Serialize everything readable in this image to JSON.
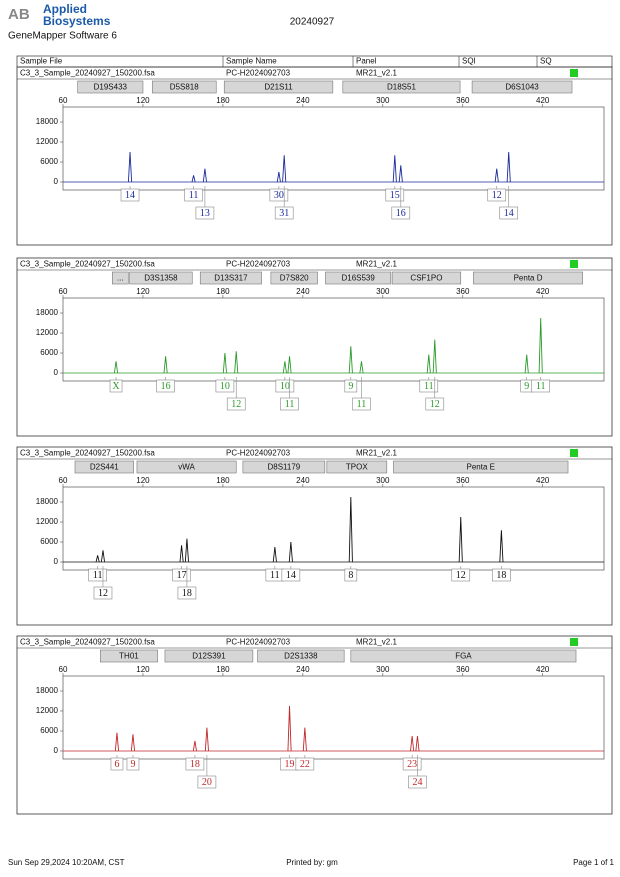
{
  "header": {
    "logo_mark": "AB",
    "brand_line1": "Applied",
    "brand_line2": "Biosystems",
    "software": "GeneMapper Software 6",
    "date": "20240927"
  },
  "table": {
    "columns": [
      "Sample File",
      "Sample Name",
      "Panel",
      "SQI",
      "SQ"
    ]
  },
  "chart_data": [
    {
      "type": "peaks",
      "sample_file": "C3_3_Sample_20240927_150200.fsa",
      "sample_name": "PC-H2024092703",
      "panel": "MR21_v2.1",
      "color": "#1a2a9a",
      "markers": [
        {
          "name": "D19S433",
          "range": [
            71,
            120
          ]
        },
        {
          "name": "D5S818",
          "range": [
            127,
            175
          ]
        },
        {
          "name": "D21S11",
          "range": [
            181,
            262.5
          ]
        },
        {
          "name": "D18S51",
          "range": [
            270,
            358
          ]
        },
        {
          "name": "D6S1043",
          "range": [
            367,
            442
          ]
        }
      ],
      "xlim": [
        60,
        466
      ],
      "xticks": [
        60,
        120,
        180,
        240,
        300,
        360,
        420
      ],
      "ylim": [
        -2400,
        22500
      ],
      "yticks": [
        0,
        6000,
        12000,
        18000
      ],
      "x": [
        110.3,
        158,
        166.5,
        222,
        226,
        309,
        313.5,
        385.5,
        394.5
      ],
      "values": [
        9000,
        2000,
        4000,
        3000,
        8000,
        8000,
        5000,
        4000,
        9000
      ],
      "labels": [
        "14",
        "11",
        "13",
        "30",
        "31",
        "15",
        "16",
        "12",
        "14"
      ]
    },
    {
      "type": "peaks",
      "sample_file": "C3_3_Sample_20240927_150200.fsa",
      "sample_name": "PC-H2024092703",
      "panel": "MR21_v2.1",
      "color": "#2a9a2a",
      "markers": [
        {
          "name": "...",
          "range": [
            97,
            109
          ]
        },
        {
          "name": "D3S1358",
          "range": [
            110,
            157
          ]
        },
        {
          "name": "D13S317",
          "range": [
            163,
            209
          ]
        },
        {
          "name": "D7S820",
          "range": [
            216,
            251
          ]
        },
        {
          "name": "D16S539",
          "range": [
            257,
            306
          ]
        },
        {
          "name": "CSF1PO",
          "range": [
            307,
            358.5
          ]
        },
        {
          "name": "Penta D",
          "range": [
            368,
            450
          ]
        }
      ],
      "xlim": [
        60,
        466
      ],
      "xticks": [
        60,
        120,
        180,
        240,
        300,
        360,
        420
      ],
      "ylim": [
        -2400,
        22500
      ],
      "yticks": [
        0,
        6000,
        12000,
        18000
      ],
      "x": [
        99.8,
        137,
        181.5,
        190,
        226.5,
        230,
        276,
        284,
        334.5,
        339,
        408,
        418.5
      ],
      "values": [
        3500,
        5000,
        6000,
        6500,
        3500,
        5000,
        8000,
        3500,
        5500,
        10000,
        5500,
        16500
      ],
      "labels": [
        "X",
        "16",
        "10",
        "12",
        "10",
        "11",
        "9",
        "11",
        "11",
        "12",
        "9",
        "11"
      ]
    },
    {
      "type": "peaks",
      "sample_file": "C3_3_Sample_20240927_150200.fsa",
      "sample_name": "PC-H2024092703",
      "panel": "MR21_v2.1",
      "color": "#111111",
      "markers": [
        {
          "name": "D2S441",
          "range": [
            69,
            113
          ]
        },
        {
          "name": "vWA",
          "range": [
            115.5,
            190
          ]
        },
        {
          "name": "D8S1179",
          "range": [
            195,
            256.5
          ]
        },
        {
          "name": "TPOX",
          "range": [
            258,
            303
          ]
        },
        {
          "name": "Penta E",
          "range": [
            308,
            439
          ]
        }
      ],
      "xlim": [
        60,
        466
      ],
      "xticks": [
        60,
        120,
        180,
        240,
        300,
        360,
        420
      ],
      "ylim": [
        -2400,
        22500
      ],
      "yticks": [
        0,
        6000,
        12000,
        18000
      ],
      "x": [
        86,
        90,
        149,
        153,
        219,
        231,
        276,
        358.5,
        389
      ],
      "values": [
        2000,
        3500,
        5000,
        7000,
        4500,
        6000,
        19500,
        13500,
        9500
      ],
      "labels": [
        "11",
        "12",
        "17",
        "18",
        "11",
        "14",
        "8",
        "12",
        "18"
      ]
    },
    {
      "type": "peaks",
      "sample_file": "C3_3_Sample_20240927_150200.fsa",
      "sample_name": "PC-H2024092703",
      "panel": "MR21_v2.1",
      "color": "#c0282a",
      "markers": [
        {
          "name": "TH01",
          "range": [
            88,
            131
          ]
        },
        {
          "name": "D12S391",
          "range": [
            136.5,
            202.5
          ]
        },
        {
          "name": "D2S1338",
          "range": [
            206,
            271
          ]
        },
        {
          "name": "FGA",
          "range": [
            276,
            445
          ]
        }
      ],
      "xlim": [
        60,
        466
      ],
      "xticks": [
        60,
        120,
        180,
        240,
        300,
        360,
        420
      ],
      "ylim": [
        -2400,
        22500
      ],
      "yticks": [
        0,
        6000,
        12000,
        18000
      ],
      "x": [
        100.5,
        112.5,
        159,
        168,
        230,
        241.5,
        322,
        326
      ],
      "values": [
        5500,
        5000,
        3000,
        7000,
        13500,
        7000,
        4500,
        4500
      ],
      "labels": [
        "6",
        "9",
        "18",
        "20",
        "19",
        "22",
        "23",
        "24"
      ]
    }
  ],
  "footer": {
    "printed_at": "Sun Sep 29,2024 10:20AM, CST",
    "printed_by": "Printed by: gm",
    "page": "Page 1 of 1"
  }
}
